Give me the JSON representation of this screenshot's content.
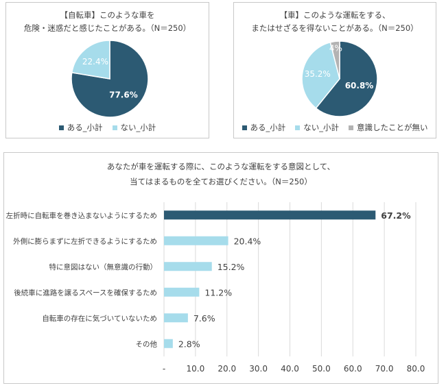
{
  "colors": {
    "dark": "#2c5a73",
    "light": "#a6dceb",
    "gray": "#b3b3b3",
    "grid": "#dadada"
  },
  "chart_data": [
    {
      "type": "pie",
      "title_lines": [
        "【自転車】このような車を",
        "危険・迷惑だと感じたことがある。（N＝250）"
      ],
      "slices": [
        {
          "name": "ある_小計",
          "value": 77.6,
          "label": "77.6%"
        },
        {
          "name": "ない_小計",
          "value": 22.4,
          "label": "22.4%"
        }
      ]
    },
    {
      "type": "pie",
      "title_lines": [
        "【車】このような運転をする、",
        "またはせざるを得ないことがある。（N＝250）"
      ],
      "slices": [
        {
          "name": "ある_小計",
          "value": 60.8,
          "label": "60.8%"
        },
        {
          "name": "ない_小計",
          "value": 35.2,
          "label": "35.2%"
        },
        {
          "name": "意識したことが無い",
          "value": 4.0,
          "label": "4%"
        }
      ]
    },
    {
      "type": "bar",
      "orientation": "horizontal",
      "title_lines": [
        "あなたが車を運転する際に、このような運転をする意図として、",
        "当てはまるものを全てお選びください。（N＝250）"
      ],
      "categories": [
        "左折時に自転車を巻き込まないようにするため",
        "外側に膨らまずに左折できるようにするため",
        "特に意図はない（無意識の行動）",
        "後続車に進路を譲るスペースを確保するため",
        "自転車の存在に気づいていないため",
        "その他"
      ],
      "values": [
        67.2,
        20.4,
        15.2,
        11.2,
        7.6,
        2.8
      ],
      "value_labels": [
        "67.2%",
        "20.4%",
        "15.2%",
        "11.2%",
        "7.6%",
        "2.8%"
      ],
      "xlim": [
        0,
        80
      ],
      "xticks": [
        0,
        10,
        20,
        30,
        40,
        50,
        60,
        70,
        80
      ],
      "xtick_labels": [
        "-",
        "10.0",
        "20.0",
        "30.0",
        "40.0",
        "50.0",
        "60.0",
        "70.0",
        "80.0"
      ],
      "grid": true
    }
  ]
}
